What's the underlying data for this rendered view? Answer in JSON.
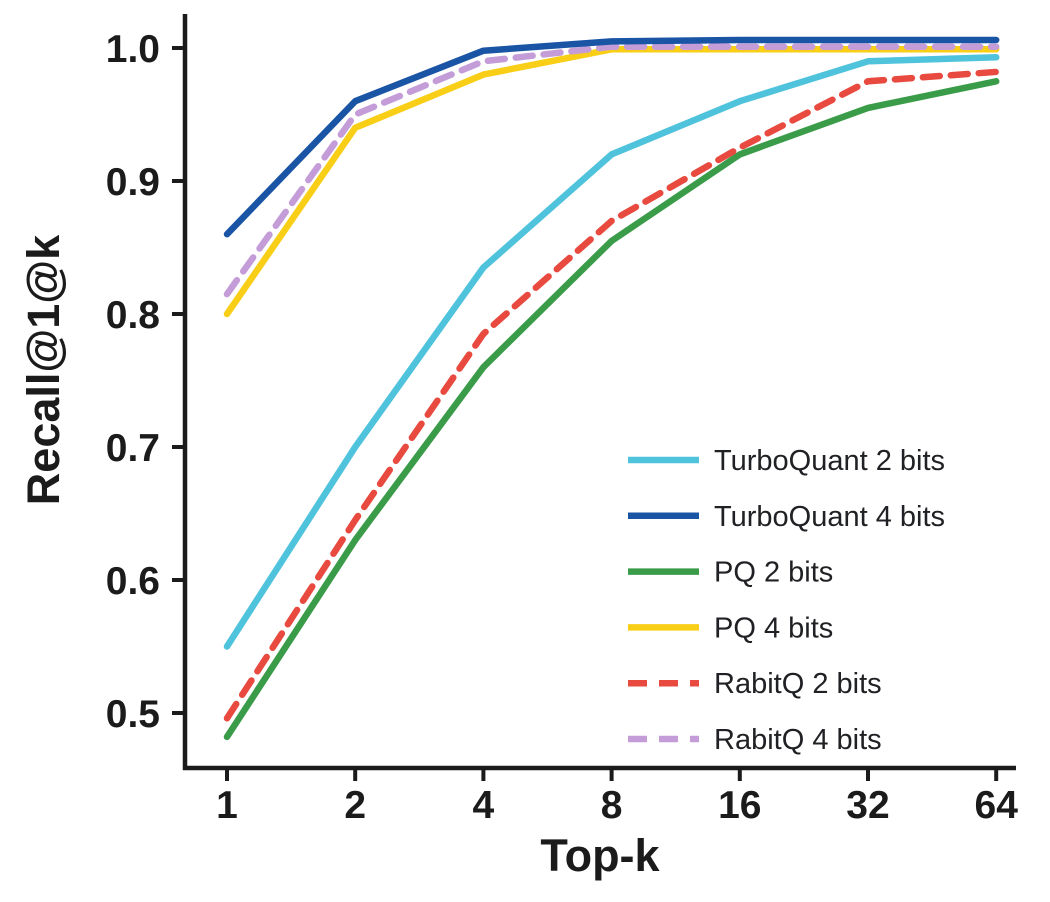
{
  "chart_data": {
    "type": "line",
    "title": "",
    "xlabel": "Top-k",
    "ylabel": "Recall@1@k",
    "x_scale": "log2",
    "categories": [
      "1",
      "2",
      "4",
      "8",
      "16",
      "32",
      "64"
    ],
    "y_ticks": [
      0.5,
      0.6,
      0.7,
      0.8,
      0.9,
      1.0
    ],
    "ylim": [
      0.46,
      1.02
    ],
    "grid": false,
    "legend_position": "inside lower-right",
    "axis_color": "#1b1b1b",
    "render_order": [
      3,
      2,
      0,
      4,
      5,
      1
    ],
    "series": [
      {
        "name": "TurboQuant 2 bits",
        "color": "#4FC3DC",
        "dash": false,
        "values": [
          0.55,
          0.7,
          0.835,
          0.92,
          0.96,
          0.99,
          0.993
        ]
      },
      {
        "name": "TurboQuant 4 bits",
        "color": "#1A55A5",
        "dash": false,
        "values": [
          0.86,
          0.96,
          0.998,
          1.005,
          1.006,
          1.006,
          1.006
        ]
      },
      {
        "name": "PQ 2 bits",
        "color": "#3A9C49",
        "dash": false,
        "values": [
          0.482,
          0.63,
          0.76,
          0.855,
          0.92,
          0.955,
          0.975
        ]
      },
      {
        "name": "PQ 4 bits",
        "color": "#F8CE17",
        "dash": false,
        "values": [
          0.8,
          0.94,
          0.98,
          0.999,
          0.999,
          0.999,
          0.999
        ]
      },
      {
        "name": "RabitQ 2 bits",
        "color": "#E84A3F",
        "dash": true,
        "values": [
          0.496,
          0.645,
          0.785,
          0.87,
          0.925,
          0.975,
          0.982
        ]
      },
      {
        "name": "RabitQ 4 bits",
        "color": "#C49DD8",
        "dash": true,
        "values": [
          0.815,
          0.95,
          0.99,
          1.001,
          1.001,
          1.001,
          1.001
        ]
      }
    ]
  }
}
